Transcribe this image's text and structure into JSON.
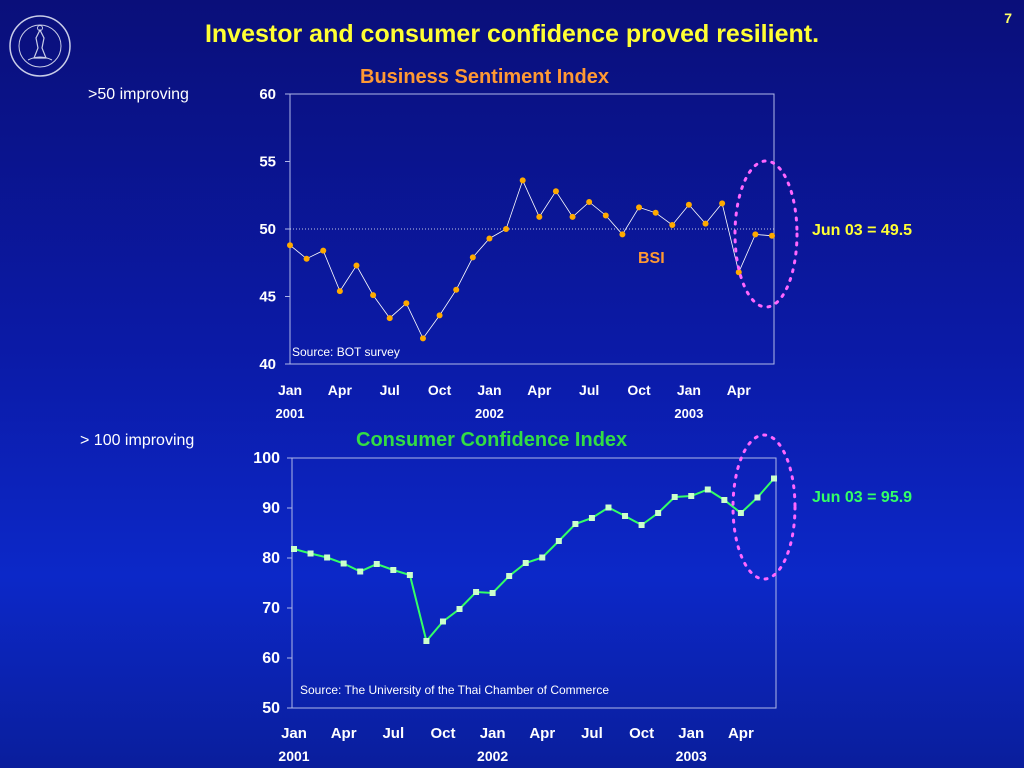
{
  "page_number": "7",
  "slide_title": "Investor and consumer confidence proved resilient.",
  "colors": {
    "title": "#ffff33",
    "bsi_title": "#ff9933",
    "cci_title": "#33dd44",
    "bsi_series": "#ffaa00",
    "cci_series": "#33ff66",
    "highlight_ellipse": "#ff66ff"
  },
  "chart_data": [
    {
      "type": "line",
      "title": "Business Sentiment Index",
      "side_note": ">50 improving",
      "annotation": "Jun 03 = 49.5",
      "series_label": "BSI",
      "source": "Source: BOT survey",
      "ylim": [
        40,
        60
      ],
      "y_ticks": [
        "60",
        "55",
        "50",
        "45",
        "40"
      ],
      "x_tick_labels": [
        {
          "month": "Jan",
          "year": "2001",
          "index": 0
        },
        {
          "month": "Apr",
          "year": "",
          "index": 3
        },
        {
          "month": "Jul",
          "year": "",
          "index": 6
        },
        {
          "month": "Oct",
          "year": "",
          "index": 9
        },
        {
          "month": "Jan",
          "year": "2002",
          "index": 12
        },
        {
          "month": "Apr",
          "year": "",
          "index": 15
        },
        {
          "month": "Jul",
          "year": "",
          "index": 18
        },
        {
          "month": "Oct",
          "year": "",
          "index": 21
        },
        {
          "month": "Jan",
          "year": "2003",
          "index": 24
        },
        {
          "month": "Apr",
          "year": "",
          "index": 27
        }
      ],
      "reference_line": 50,
      "series": [
        {
          "name": "BSI",
          "values": [
            48.8,
            47.8,
            48.4,
            45.4,
            47.3,
            45.1,
            43.4,
            44.5,
            41.9,
            43.6,
            45.5,
            47.9,
            49.3,
            50.0,
            53.6,
            50.9,
            52.8,
            50.9,
            52.0,
            51.0,
            49.6,
            51.6,
            51.2,
            50.3,
            51.8,
            50.4,
            51.9,
            46.8,
            49.6,
            49.5
          ]
        }
      ]
    },
    {
      "type": "line",
      "title": "Consumer Confidence Index",
      "side_note": "> 100 improving",
      "annotation": "Jun 03 =  95.9",
      "source": "Source: The University of the Thai Chamber of Commerce",
      "ylim": [
        50,
        100
      ],
      "y_ticks": [
        "100",
        "90",
        "80",
        "70",
        "60",
        "50"
      ],
      "x_tick_labels": [
        {
          "month": "Jan",
          "year": "2001",
          "index": 0
        },
        {
          "month": "Apr",
          "year": "",
          "index": 3
        },
        {
          "month": "Jul",
          "year": "",
          "index": 6
        },
        {
          "month": "Oct",
          "year": "",
          "index": 9
        },
        {
          "month": "Jan",
          "year": "2002",
          "index": 12
        },
        {
          "month": "Apr",
          "year": "",
          "index": 15
        },
        {
          "month": "Jul",
          "year": "",
          "index": 18
        },
        {
          "month": "Oct",
          "year": "",
          "index": 21
        },
        {
          "month": "Jan",
          "year": "2003",
          "index": 24
        },
        {
          "month": "Apr",
          "year": "",
          "index": 27
        }
      ],
      "series": [
        {
          "name": "",
          "values": [
            81.8,
            80.9,
            80.1,
            78.9,
            77.3,
            78.8,
            77.6,
            76.6,
            63.4,
            67.3,
            69.8,
            73.2,
            73.0,
            76.4,
            79.0,
            80.1,
            83.4,
            86.8,
            88.0,
            90.1,
            88.4,
            86.6,
            89.0,
            92.2,
            92.4,
            93.7,
            91.6,
            89.0,
            92.1,
            95.9
          ]
        }
      ]
    }
  ]
}
